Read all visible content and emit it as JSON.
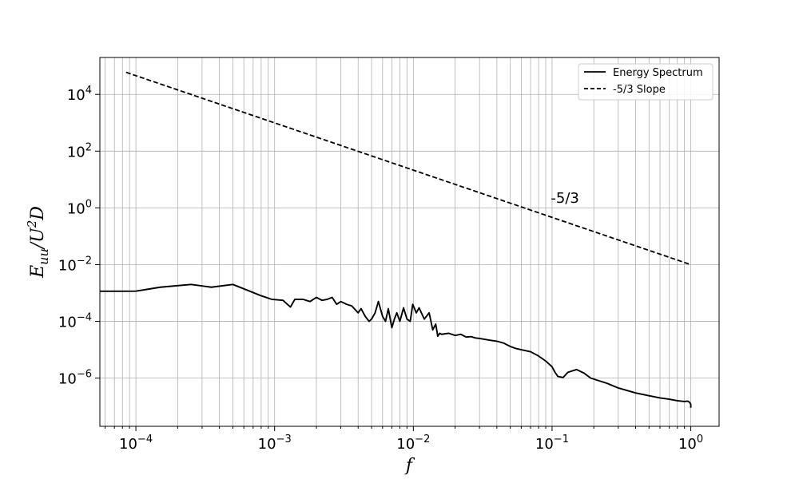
{
  "chart_data": {
    "type": "line",
    "title": "",
    "xlabel": "f",
    "ylabel": "E_uu/U^2 D",
    "x_scale": "log",
    "y_scale": "log",
    "xlim": [
      5.5e-05,
      1.6
    ],
    "ylim": [
      2e-08,
      200000.0
    ],
    "grid": true,
    "x_ticks": [
      {
        "value": 0.0001,
        "label": "10^-4"
      },
      {
        "value": 0.001,
        "label": "10^-3"
      },
      {
        "value": 0.01,
        "label": "10^-2"
      },
      {
        "value": 0.1,
        "label": "10^-1"
      },
      {
        "value": 1,
        "label": "10^0"
      }
    ],
    "y_ticks": [
      {
        "value": 1e-06,
        "label": "10^-6"
      },
      {
        "value": 0.0001,
        "label": "10^-4"
      },
      {
        "value": 0.01,
        "label": "10^-2"
      },
      {
        "value": 1,
        "label": "10^0"
      },
      {
        "value": 100,
        "label": "10^2"
      },
      {
        "value": 10000,
        "label": "10^4"
      }
    ],
    "legend_position": "top-right",
    "series": [
      {
        "name": "Energy Spectrum",
        "style": "solid",
        "color": "#000000",
        "x": [
          5.5e-05,
          8e-05,
          0.0001,
          0.00015,
          0.00025,
          0.00035,
          0.0005,
          0.00065,
          0.0008,
          0.00095,
          0.00115,
          0.0013,
          0.0014,
          0.0016,
          0.0018,
          0.002,
          0.0022,
          0.0024,
          0.0026,
          0.0028,
          0.003,
          0.0033,
          0.0036,
          0.004,
          0.0042,
          0.0045,
          0.0048,
          0.005,
          0.0053,
          0.0056,
          0.006,
          0.0063,
          0.0066,
          0.007,
          0.0073,
          0.0076,
          0.008,
          0.0085,
          0.009,
          0.0095,
          0.0099,
          0.0105,
          0.011,
          0.012,
          0.013,
          0.0138,
          0.0145,
          0.015,
          0.0155,
          0.016,
          0.018,
          0.02,
          0.022,
          0.024,
          0.026,
          0.028,
          0.03,
          0.035,
          0.04,
          0.045,
          0.05,
          0.055,
          0.06,
          0.07,
          0.08,
          0.09,
          0.1,
          0.105,
          0.11,
          0.12,
          0.13,
          0.15,
          0.17,
          0.19,
          0.25,
          0.3,
          0.4,
          0.5,
          0.6,
          0.7,
          0.8,
          0.9,
          0.95,
          0.98,
          1.0,
          1.0
        ],
        "y": [
          0.00115,
          0.00115,
          0.00116,
          0.0016,
          0.002,
          0.0016,
          0.002,
          0.0012,
          0.0008,
          0.0006,
          0.00055,
          0.00032,
          0.0006,
          0.0006,
          0.0005,
          0.0007,
          0.00055,
          0.0006,
          0.0007,
          0.0004,
          0.0005,
          0.0004,
          0.00035,
          0.0002,
          0.00028,
          0.00015,
          0.0001,
          0.00012,
          0.0002,
          0.0005,
          0.00015,
          0.0001,
          0.00028,
          6e-05,
          0.00012,
          0.0002,
          0.0001,
          0.0003,
          0.00012,
          0.0001,
          0.0004,
          0.0002,
          0.0003,
          0.00012,
          0.0002,
          5e-05,
          8e-05,
          3e-05,
          3.8e-05,
          3.5e-05,
          3.8e-05,
          3.2e-05,
          3.5e-05,
          2.8e-05,
          2.9e-05,
          2.6e-05,
          2.5e-05,
          2.2e-05,
          2e-05,
          1.7e-05,
          1.3e-05,
          1.1e-05,
          1e-05,
          8.5e-06,
          6e-06,
          4e-06,
          2.5e-06,
          1.6e-06,
          1.15e-06,
          1.05e-06,
          1.6e-06,
          2e-06,
          1.5e-06,
          1e-06,
          6.5e-07,
          4.5e-07,
          3e-07,
          2.4e-07,
          2e-07,
          1.8e-07,
          1.6e-07,
          1.5e-07,
          1.55e-07,
          1.4e-07,
          1.2e-07,
          9e-08
        ]
      },
      {
        "name": "-5/3 Slope",
        "style": "dashed",
        "color": "#000000",
        "x": [
          8.5e-05,
          1.0
        ],
        "y": [
          60000,
          0.01
        ]
      }
    ],
    "annotations": [
      {
        "text": "-5/3",
        "x": 0.098,
        "y": 1.5
      }
    ]
  }
}
